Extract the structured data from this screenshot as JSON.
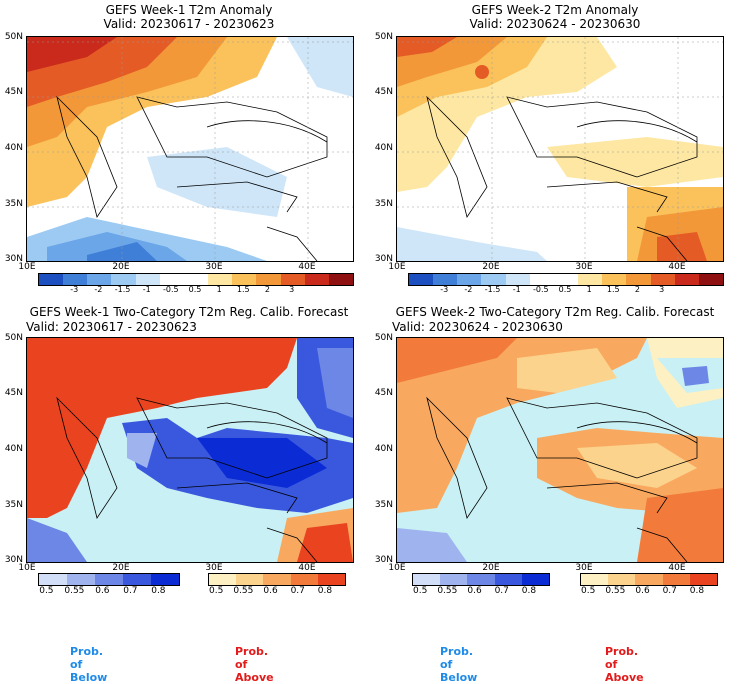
{
  "panels": [
    {
      "title": "GEFS Week-1 T2m Anomaly",
      "valid": "Valid: 20230617 - 20230623"
    },
    {
      "title": "GEFS Week-2 T2m Anomaly",
      "valid": "Valid: 20230624 - 20230630"
    },
    {
      "title": "GEFS Week-1 Two-Category T2m Reg. Calib. Forecast",
      "valid": "Valid: 20230617 - 20230623"
    },
    {
      "title": "GEFS Week-2 Two-Category T2m Reg. Calib. Forecast",
      "valid": "Valid: 20230624 - 20230630"
    }
  ],
  "axes": {
    "lat_labels": [
      "50N",
      "45N",
      "40N",
      "35N",
      "30N"
    ],
    "lon_labels": [
      "10E",
      "20E",
      "30E",
      "40E"
    ]
  },
  "anomaly_colorbar": {
    "labels": [
      "-3",
      "-2",
      "-1.5",
      "-1",
      "-0.5",
      "0.5",
      "1",
      "1.5",
      "2",
      "3"
    ],
    "colors": [
      "#1c4fbf",
      "#3f7fd7",
      "#6aa6e8",
      "#9ccaf2",
      "#cfe6f8",
      "#ffffff",
      "#ffffff",
      "#fde7a2",
      "#fbc25b",
      "#f29838",
      "#e45b25",
      "#c92a1c",
      "#8e1010"
    ]
  },
  "prob_colorbar": {
    "below_labels": [
      "0.5",
      "0.55",
      "0.6",
      "0.7",
      "0.8"
    ],
    "below_colors": [
      "#d2ddf7",
      "#9fb4ef",
      "#6c87e6",
      "#3a58de",
      "#0b2bd4"
    ],
    "above_labels": [
      "0.5",
      "0.55",
      "0.6",
      "0.7",
      "0.8"
    ],
    "above_colors": [
      "#fdf0c3",
      "#fbd38c",
      "#f8a95f",
      "#f27b3c",
      "#e94320"
    ],
    "below_caption": "Prob. of Below",
    "above_caption": "Prob. of Above",
    "below_color": "#1f8be8",
    "above_color": "#e21b1b"
  }
}
